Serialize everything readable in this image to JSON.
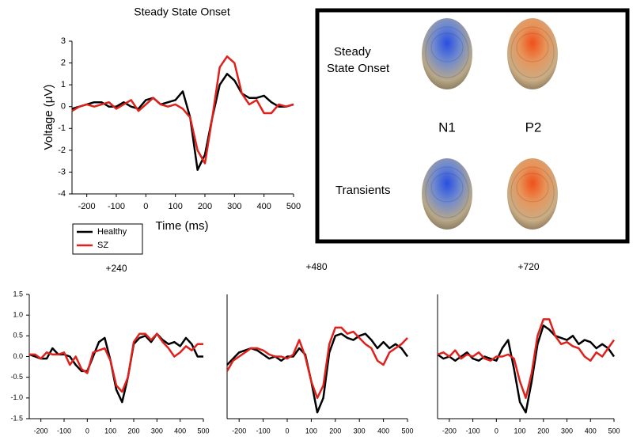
{
  "chart_data": [
    {
      "type": "line",
      "title": "Steady State Onset",
      "x_label": "Time (ms)",
      "y_label": "Voltage (μV)",
      "x": [
        -250,
        -225,
        -200,
        -175,
        -150,
        -125,
        -100,
        -75,
        -50,
        -25,
        0,
        25,
        50,
        75,
        100,
        125,
        150,
        175,
        200,
        225,
        250,
        275,
        300,
        325,
        350,
        375,
        400,
        425,
        450,
        475,
        500
      ],
      "series": [
        {
          "name": "Healthy",
          "color": "#000000",
          "values": [
            -0.1,
            0.0,
            0.1,
            0.2,
            0.2,
            0.0,
            0.0,
            0.2,
            0.0,
            -0.1,
            0.3,
            0.4,
            0.1,
            0.2,
            0.3,
            0.7,
            -0.5,
            -2.9,
            -2.2,
            -0.5,
            1.0,
            1.5,
            1.2,
            0.6,
            0.4,
            0.4,
            0.5,
            0.2,
            0.0,
            0.0,
            0.1
          ]
        },
        {
          "name": "SZ",
          "color": "#e0201b",
          "values": [
            -0.2,
            0.0,
            0.1,
            0.0,
            0.1,
            0.2,
            -0.1,
            0.1,
            0.3,
            -0.2,
            0.1,
            0.4,
            0.1,
            0.0,
            0.1,
            -0.1,
            -0.5,
            -2.0,
            -2.6,
            -0.5,
            1.8,
            2.3,
            2.0,
            0.6,
            0.1,
            0.3,
            -0.3,
            -0.3,
            0.1,
            0.0,
            0.1
          ]
        }
      ],
      "xlim": [
        -250,
        500
      ],
      "xticks": [
        -200,
        -100,
        0,
        100,
        200,
        300,
        400,
        500
      ],
      "ylim": [
        -4,
        3
      ],
      "yticks": [
        -4,
        -3,
        -2,
        -1,
        0,
        1,
        2,
        3
      ],
      "legend": "bottom-left"
    },
    {
      "type": "line",
      "title": "+240",
      "x": [
        -250,
        -225,
        -200,
        -175,
        -150,
        -125,
        -100,
        -75,
        -50,
        -25,
        0,
        25,
        50,
        75,
        100,
        125,
        150,
        175,
        200,
        225,
        250,
        275,
        300,
        325,
        350,
        375,
        400,
        425,
        450,
        475,
        500
      ],
      "series": [
        {
          "color": "#000000",
          "values": [
            0.05,
            0.0,
            -0.05,
            -0.05,
            0.2,
            0.05,
            0.05,
            0.0,
            -0.2,
            -0.35,
            -0.35,
            0.0,
            0.35,
            0.45,
            -0.1,
            -0.8,
            -1.1,
            -0.5,
            0.3,
            0.45,
            0.5,
            0.35,
            0.55,
            0.4,
            0.3,
            0.35,
            0.25,
            0.45,
            0.3,
            0.0,
            0.0
          ]
        },
        {
          "color": "#e0201b",
          "values": [
            0.05,
            0.05,
            -0.05,
            0.1,
            0.05,
            0.05,
            0.1,
            -0.2,
            0.0,
            -0.3,
            -0.4,
            0.1,
            0.15,
            0.2,
            -0.1,
            -0.7,
            -0.85,
            -0.5,
            0.35,
            0.55,
            0.55,
            0.4,
            0.55,
            0.35,
            0.2,
            0.0,
            0.1,
            0.25,
            0.15,
            0.3,
            0.3
          ]
        }
      ],
      "xlim": [
        -250,
        500
      ],
      "xticks": [
        -200,
        -100,
        0,
        100,
        200,
        300,
        400,
        500
      ],
      "ylim": [
        -1.5,
        1.5
      ],
      "yticks": [
        -1.5,
        {
          "value": -1,
          "label": "-1.0"
        },
        -0.5,
        {
          "value": 0,
          "label": "0.0"
        },
        0.5,
        {
          "value": 1,
          "label": "1.0"
        },
        1.5
      ]
    },
    {
      "type": "line",
      "title": "+480",
      "x": [
        -250,
        -225,
        -200,
        -175,
        -150,
        -125,
        -100,
        -75,
        -50,
        -25,
        0,
        25,
        50,
        75,
        100,
        125,
        150,
        175,
        200,
        225,
        250,
        275,
        300,
        325,
        350,
        375,
        400,
        425,
        450,
        475,
        500
      ],
      "series": [
        {
          "color": "#000000",
          "values": [
            -0.2,
            -0.05,
            0.1,
            0.15,
            0.2,
            0.15,
            0.05,
            -0.05,
            0.0,
            -0.1,
            0.0,
            0.0,
            0.2,
            0.05,
            -0.6,
            -1.35,
            -1.0,
            0.1,
            0.5,
            0.55,
            0.45,
            0.4,
            0.5,
            0.55,
            0.4,
            0.2,
            0.35,
            0.2,
            0.3,
            0.2,
            0.0
          ]
        },
        {
          "color": "#e0201b",
          "values": [
            -0.35,
            -0.1,
            0.0,
            0.1,
            0.2,
            0.2,
            0.15,
            0.05,
            0.0,
            0.0,
            -0.05,
            0.05,
            0.4,
            0.0,
            -0.6,
            -1.0,
            -0.7,
            0.3,
            0.7,
            0.7,
            0.55,
            0.6,
            0.45,
            0.3,
            0.2,
            -0.1,
            -0.2,
            0.1,
            0.2,
            0.3,
            0.45
          ]
        }
      ],
      "xlim": [
        -250,
        500
      ],
      "xticks": [
        -200,
        -100,
        0,
        100,
        200,
        300,
        400,
        500
      ],
      "ylim": [
        -1.5,
        1.5
      ]
    },
    {
      "type": "line",
      "title": "+720",
      "x": [
        -250,
        -225,
        -200,
        -175,
        -150,
        -125,
        -100,
        -75,
        -50,
        -25,
        0,
        25,
        50,
        75,
        100,
        125,
        150,
        175,
        200,
        225,
        250,
        275,
        300,
        325,
        350,
        375,
        400,
        425,
        450,
        475,
        500
      ],
      "series": [
        {
          "color": "#000000",
          "values": [
            0.05,
            -0.05,
            0.0,
            -0.1,
            0.0,
            0.1,
            -0.05,
            -0.1,
            0.0,
            -0.05,
            -0.1,
            0.2,
            0.4,
            -0.3,
            -1.1,
            -1.35,
            -0.6,
            0.3,
            0.75,
            0.65,
            0.5,
            0.45,
            0.4,
            0.5,
            0.3,
            0.4,
            0.35,
            0.2,
            0.3,
            0.2,
            0.0
          ]
        },
        {
          "color": "#e0201b",
          "values": [
            0.05,
            0.1,
            0.0,
            0.15,
            -0.05,
            0.05,
            0.0,
            0.1,
            -0.05,
            -0.1,
            0.0,
            0.0,
            0.05,
            -0.05,
            -0.6,
            -1.0,
            -0.4,
            0.5,
            0.9,
            0.9,
            0.5,
            0.3,
            0.35,
            0.25,
            0.2,
            0.0,
            -0.1,
            0.1,
            0.0,
            0.2,
            0.4
          ]
        }
      ],
      "xlim": [
        -250,
        500
      ],
      "xticks": [
        -200,
        -100,
        0,
        100,
        200,
        300,
        400,
        500
      ],
      "ylim": [
        -1.5,
        1.5
      ]
    }
  ],
  "topography": {
    "row_labels": [
      [
        "Steady",
        "State Onset"
      ],
      [
        "Transients"
      ]
    ],
    "column_labels": [
      "N1",
      "P2"
    ]
  }
}
